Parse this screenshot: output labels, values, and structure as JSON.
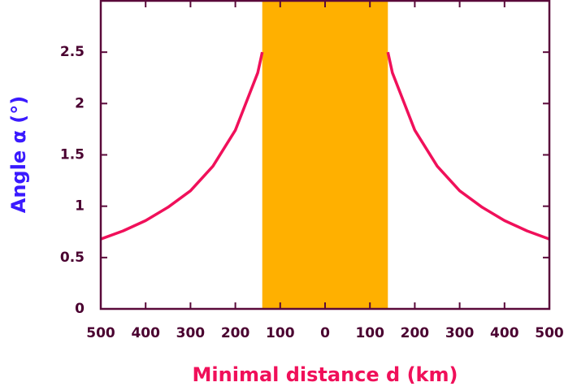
{
  "chart_data": {
    "type": "line",
    "x_label": "Minimal distance d (km)",
    "y_label": "Angle α (°)",
    "x_label_color": "#f0105a",
    "y_label_color": "#3a1aff",
    "xlim": [
      -500,
      500
    ],
    "ylim": [
      0,
      3
    ],
    "xticks": [
      {
        "value": -500,
        "label": "500"
      },
      {
        "value": -400,
        "label": "400"
      },
      {
        "value": -300,
        "label": "300"
      },
      {
        "value": -200,
        "label": "200"
      },
      {
        "value": -100,
        "label": "100"
      },
      0,
      100,
      200,
      300,
      400,
      500
    ],
    "yticks": [
      0,
      0.5,
      1,
      1.5,
      2,
      2.5
    ],
    "band": {
      "range": [
        -140,
        140
      ],
      "color": "#ffb000"
    },
    "series": [
      {
        "color": "#f0105a",
        "x": [
          -500,
          -450,
          -400,
          -350,
          -300,
          -250,
          -200,
          -150,
          -140,
          null,
          140,
          150,
          200,
          250,
          300,
          350,
          400,
          450,
          500
        ],
        "values": [
          0.68,
          0.76,
          0.86,
          0.99,
          1.15,
          1.39,
          1.74,
          2.3,
          2.5,
          null,
          2.5,
          2.3,
          1.74,
          1.39,
          1.15,
          0.99,
          0.86,
          0.76,
          0.68
        ]
      }
    ]
  }
}
